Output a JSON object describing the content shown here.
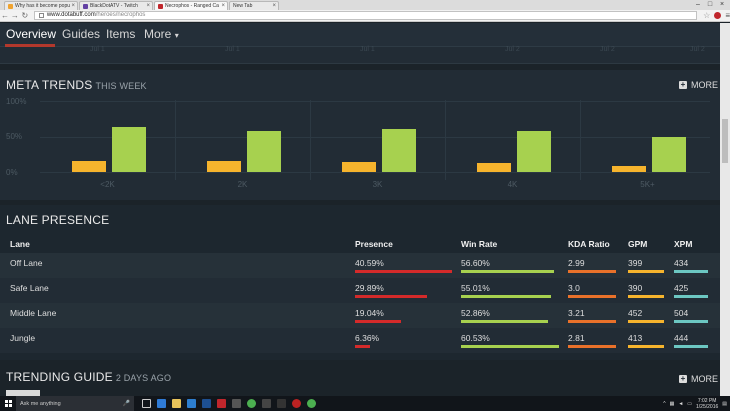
{
  "browser": {
    "tabs": [
      {
        "title": "Why has it become popu",
        "active": false
      },
      {
        "title": "BlackDotATV - Twitch",
        "active": false
      },
      {
        "title": "Necrophos - Ranged Ca",
        "active": true
      },
      {
        "title": "New Tab",
        "active": false
      }
    ],
    "url_host": "www.dotabuff.com",
    "url_path": "/heroes/necrophos"
  },
  "site_nav": {
    "items": [
      "Overview",
      "Guides",
      "Items",
      "More"
    ],
    "more_caret": "▾",
    "active": "Overview"
  },
  "remnant_labels": [
    "Jul 1",
    "Jul 1",
    "Jul 1",
    "Jul 2",
    "Jul 2",
    "Jul 2"
  ],
  "meta_trends": {
    "title": "META TRENDS",
    "subtitle": "THIS WEEK",
    "more_label": "MORE"
  },
  "chart_data": {
    "type": "bar",
    "categories": [
      "<2K",
      "2K",
      "3K",
      "4K",
      "5K+"
    ],
    "series": [
      {
        "values": [
          16,
          16,
          14,
          13,
          8
        ],
        "color": "#f6b42d"
      },
      {
        "values": [
          63,
          58,
          61,
          58,
          49
        ],
        "color": "#a7d14f"
      }
    ],
    "yticks": [
      "100%",
      "50%",
      "0%"
    ],
    "ylim": [
      0,
      100
    ],
    "grid": true
  },
  "lane_presence": {
    "title": "LANE PRESENCE",
    "headers": [
      "Lane",
      "Presence",
      "Win Rate",
      "KDA Ratio",
      "GPM",
      "XPM"
    ],
    "rows": [
      {
        "lane": "Off Lane",
        "presence": "40.59%",
        "presence_frac": 0.4059,
        "winrate": "56.60%",
        "winrate_frac": 0.566,
        "kda": "2.99",
        "gpm": "399",
        "xpm": "434"
      },
      {
        "lane": "Safe Lane",
        "presence": "29.89%",
        "presence_frac": 0.2989,
        "winrate": "55.01%",
        "winrate_frac": 0.5501,
        "kda": "3.0",
        "gpm": "390",
        "xpm": "425"
      },
      {
        "lane": "Middle Lane",
        "presence": "19.04%",
        "presence_frac": 0.1904,
        "winrate": "52.86%",
        "winrate_frac": 0.5286,
        "kda": "3.21",
        "gpm": "452",
        "xpm": "504"
      },
      {
        "lane": "Jungle",
        "presence": "6.36%",
        "presence_frac": 0.0636,
        "winrate": "60.53%",
        "winrate_frac": 0.6053,
        "kda": "2.81",
        "gpm": "413",
        "xpm": "444"
      }
    ],
    "colors": {
      "presence": "#d42a2a",
      "winrate": "#a7d14f",
      "kda": "#e9712a",
      "gpm": "#f6b42d",
      "xpm": "#6cc7c2"
    }
  },
  "trending_guide": {
    "title": "TRENDING GUIDE",
    "subtitle": "2 DAYS AGO",
    "more_label": "MORE"
  },
  "taskbar": {
    "search_placeholder": "Ask me anything",
    "time": "7:02 PM",
    "date": "1/25/2016"
  }
}
